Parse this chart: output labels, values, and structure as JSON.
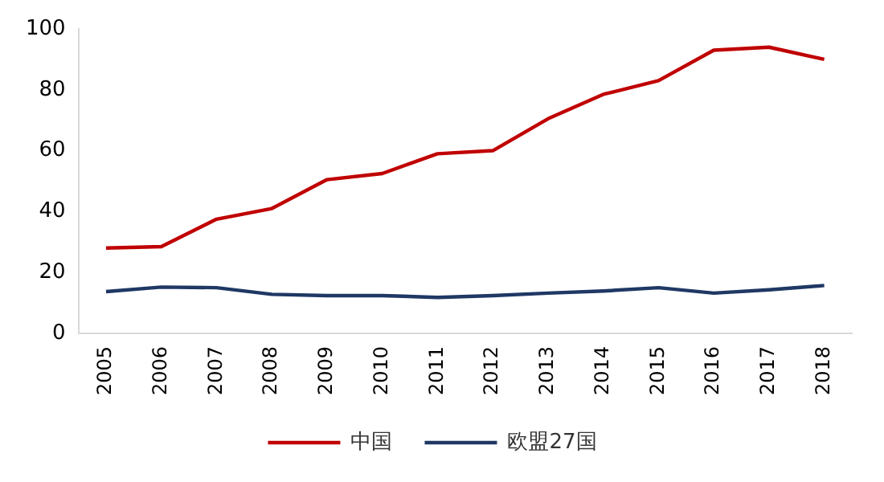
{
  "chart_data": {
    "type": "line",
    "categories": [
      "2005",
      "2006",
      "2007",
      "2008",
      "2009",
      "2010",
      "2011",
      "2012",
      "2013",
      "2014",
      "2015",
      "2016",
      "2017",
      "2018"
    ],
    "series": [
      {
        "name": "中国",
        "color": "#c00000",
        "values": [
          28,
          28.5,
          37.5,
          41,
          50.5,
          52.5,
          59,
          60,
          70.5,
          78.5,
          83,
          93,
          94,
          90
        ]
      },
      {
        "name": "欧盟27国",
        "color": "#1f3864",
        "values": [
          13.7,
          15.2,
          15,
          12.8,
          12.4,
          12.4,
          11.8,
          12.4,
          13.2,
          13.9,
          15,
          13.2,
          14.3,
          15.7
        ]
      }
    ],
    "ylim": [
      0,
      100
    ],
    "yticks": [
      0,
      20,
      40,
      60,
      80,
      100
    ],
    "grid": false,
    "legend": "bottom",
    "marker": "none",
    "line_style": "solid"
  }
}
